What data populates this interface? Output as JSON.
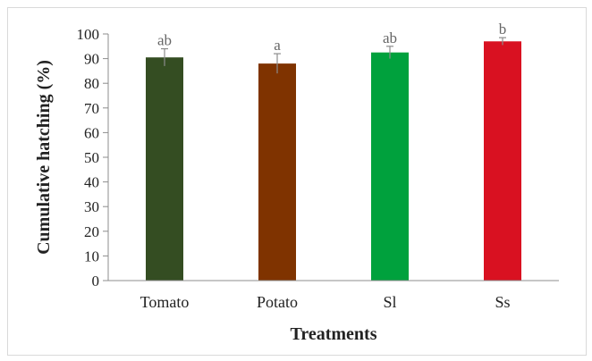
{
  "chart_data": {
    "type": "bar",
    "title": "",
    "xlabel": "Treatments",
    "ylabel": "Cumulative hatching (%)",
    "ylim": [
      0,
      100
    ],
    "yticks": [
      0,
      10,
      20,
      30,
      40,
      50,
      60,
      70,
      80,
      90,
      100
    ],
    "grid": false,
    "categories": [
      "Tomato",
      "Potato",
      "Sl",
      "Ss"
    ],
    "values": [
      90.5,
      88,
      92.5,
      97
    ],
    "errors": [
      3.5,
      4,
      2.5,
      1.5
    ],
    "significance_letters": [
      "ab",
      "a",
      "ab",
      "b"
    ],
    "colors": [
      "#344d22",
      "#7f3300",
      "#00a13d",
      "#d91121"
    ]
  }
}
